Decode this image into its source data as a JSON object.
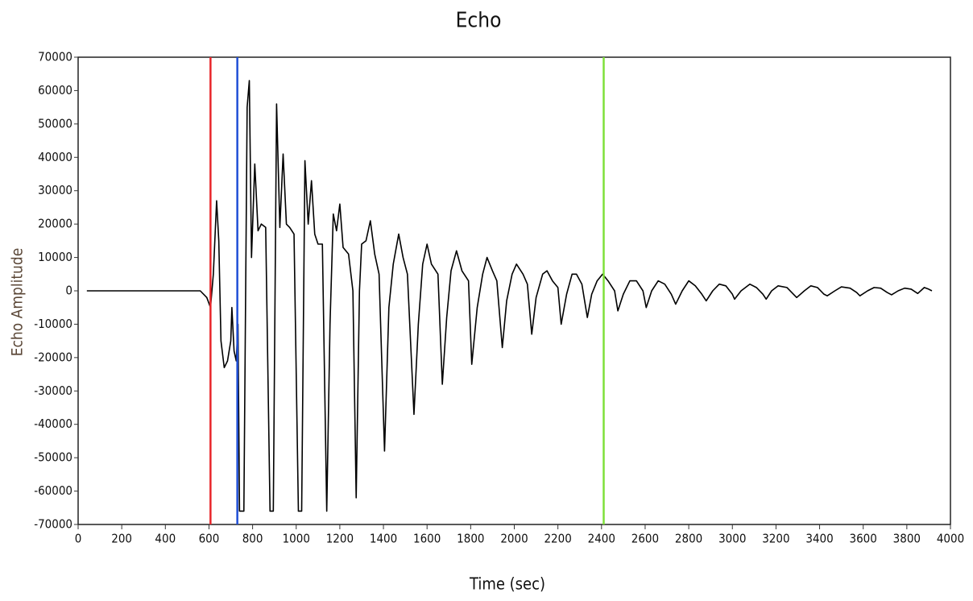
{
  "chart_data": {
    "type": "line",
    "title": "Echo",
    "x_label": "Time (sec)",
    "y_label": "Echo Amplitude",
    "color": "#000000",
    "x": [
      40,
      100,
      200,
      300,
      400,
      500,
      560,
      590,
      607,
      620,
      635,
      645,
      655,
      670,
      685,
      700,
      705,
      715,
      725,
      733,
      740,
      760,
      775,
      785,
      795,
      810,
      825,
      840,
      860,
      880,
      895,
      910,
      925,
      940,
      955,
      970,
      990,
      1010,
      1025,
      1040,
      1055,
      1070,
      1085,
      1100,
      1120,
      1140,
      1155,
      1170,
      1185,
      1200,
      1215,
      1240,
      1260,
      1275,
      1290,
      1300,
      1320,
      1340,
      1360,
      1380,
      1405,
      1425,
      1445,
      1470,
      1490,
      1510,
      1540,
      1560,
      1580,
      1600,
      1620,
      1650,
      1670,
      1690,
      1710,
      1735,
      1760,
      1790,
      1805,
      1830,
      1855,
      1875,
      1900,
      1920,
      1945,
      1965,
      1990,
      2010,
      2040,
      2060,
      2080,
      2100,
      2130,
      2150,
      2175,
      2200,
      2215,
      2240,
      2265,
      2285,
      2310,
      2335,
      2355,
      2380,
      2405,
      2430,
      2460,
      2475,
      2500,
      2530,
      2560,
      2590,
      2605,
      2630,
      2660,
      2690,
      2720,
      2740,
      2770,
      2800,
      2830,
      2860,
      2880,
      2910,
      2940,
      2970,
      3000,
      3010,
      3040,
      3080,
      3110,
      3140,
      3155,
      3180,
      3210,
      3250,
      3280,
      3295,
      3330,
      3360,
      3390,
      3420,
      3435,
      3470,
      3500,
      3540,
      3570,
      3585,
      3620,
      3650,
      3680,
      3710,
      3730,
      3760,
      3790,
      3820,
      3850,
      3880,
      3900,
      3915
    ],
    "values": [
      0,
      0,
      0,
      0,
      0,
      0,
      0,
      -2000,
      -5000,
      5000,
      27000,
      15000,
      -15000,
      -23000,
      -21000,
      -15000,
      -5000,
      -18000,
      -21000,
      -10000,
      -66000,
      -66000,
      55000,
      63000,
      10000,
      38000,
      18000,
      20000,
      19000,
      -66000,
      -66000,
      56000,
      19000,
      41000,
      20000,
      19000,
      17000,
      -66000,
      -66000,
      39000,
      20000,
      33000,
      17000,
      14000,
      14000,
      -66000,
      -10000,
      23000,
      18000,
      26000,
      13000,
      11000,
      0,
      -62000,
      0,
      14000,
      15000,
      21000,
      11000,
      5000,
      -48000,
      -5000,
      8000,
      17000,
      10000,
      5000,
      -37000,
      -10000,
      8000,
      14000,
      8000,
      5000,
      -28000,
      -8000,
      6000,
      12000,
      6000,
      3000,
      -22000,
      -5000,
      5000,
      10000,
      6000,
      3000,
      -17000,
      -3000,
      5000,
      8000,
      5000,
      2000,
      -13000,
      -2000,
      5000,
      6000,
      3000,
      1000,
      -10000,
      -1000,
      5000,
      5000,
      2000,
      -8000,
      -1000,
      3000,
      5000,
      3000,
      0,
      -6000,
      -1000,
      3000,
      3000,
      0,
      -5000,
      0,
      3000,
      2000,
      -1000,
      -4000,
      0,
      3000,
      1500,
      -1000,
      -3000,
      0,
      2000,
      1500,
      -1000,
      -2500,
      0,
      2000,
      1000,
      -1000,
      -2500,
      0,
      1500,
      1000,
      -1000,
      -2000,
      0,
      1500,
      1000,
      -1000,
      -1500,
      0,
      1200,
      800,
      -500,
      -1500,
      0,
      1000,
      800,
      -500,
      -1200,
      0,
      800,
      500,
      -800,
      1000,
      500,
      0
    ],
    "cursors": [
      {
        "x": 607,
        "color": "#e8262b"
      },
      {
        "x": 730,
        "color": "#1f4fd6"
      },
      {
        "x": 2410,
        "color": "#7ee03a"
      }
    ],
    "xlim": [
      0,
      4000
    ],
    "xticks": [
      0,
      200,
      400,
      600,
      800,
      1000,
      1200,
      1400,
      1600,
      1800,
      2000,
      2200,
      2400,
      2600,
      2800,
      3000,
      3200,
      3400,
      3600,
      3800,
      4000
    ],
    "ylim": [
      -70000,
      70000
    ],
    "yticks": [
      70000,
      60000,
      50000,
      40000,
      30000,
      20000,
      10000,
      0,
      -10000,
      -20000,
      -30000,
      -40000,
      -50000,
      -60000,
      -70000
    ]
  }
}
